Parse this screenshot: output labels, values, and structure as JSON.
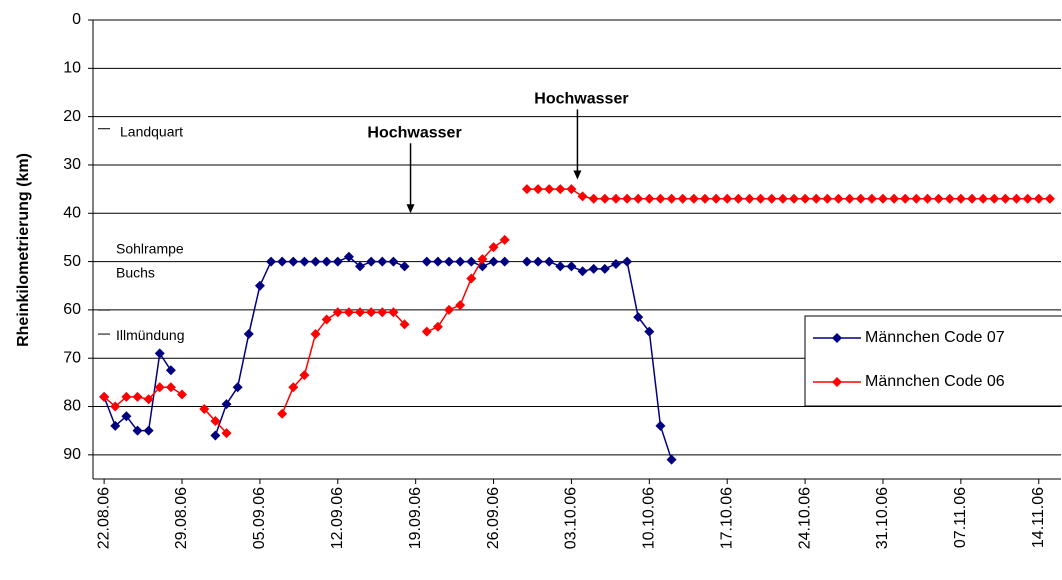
{
  "chart_data": {
    "type": "line",
    "y_label": "Rheinkilometrierung (km)",
    "ylim": [
      0,
      95
    ],
    "yticks": [
      0,
      10,
      20,
      30,
      40,
      50,
      60,
      70,
      80,
      90
    ],
    "y_inverted": true,
    "grid": true,
    "xlim": [
      "21.08.06",
      "16.11.06"
    ],
    "xticks": [
      "22.08.06",
      "29.08.06",
      "05.09.06",
      "12.09.06",
      "19.09.06",
      "26.09.06",
      "03.10.06",
      "10.10.06",
      "17.10.06",
      "24.10.06",
      "31.10.06",
      "07.11.06",
      "14.11.06"
    ],
    "legend": "right",
    "annotations": [
      {
        "text": "Landquart",
        "y": 22.5
      },
      {
        "text": "Sohlrampe",
        "y": 50
      },
      {
        "text": "Buchs",
        "y": 50
      },
      {
        "text": "Illmündung",
        "y": 65
      },
      {
        "text": "Hochwasser",
        "x": "18.09.06",
        "y": 40
      },
      {
        "text": "Hochwasser",
        "x": "03.10.06",
        "y": 33
      }
    ],
    "series": [
      {
        "name": "Männchen Code 07",
        "color": "#000080",
        "x": [
          "22.08.06",
          "23.08.06",
          "24.08.06",
          "25.08.06",
          "26.08.06",
          "27.08.06",
          "28.08.06",
          "29.08.06",
          "01.09.06",
          "02.09.06",
          "03.09.06",
          "04.09.06",
          "05.09.06",
          "06.09.06",
          "07.09.06",
          "08.09.06",
          "09.09.06",
          "10.09.06",
          "11.09.06",
          "12.09.06",
          "13.09.06",
          "14.09.06",
          "15.09.06",
          "16.09.06",
          "17.09.06",
          "18.09.06",
          "19.09.06",
          "20.09.06",
          "21.09.06",
          "22.09.06",
          "23.09.06",
          "24.09.06",
          "25.09.06",
          "26.09.06",
          "27.09.06",
          "28.09.06",
          "29.09.06",
          "30.09.06",
          "01.10.06",
          "02.10.06",
          "03.10.06",
          "04.10.06",
          "05.10.06",
          "06.10.06",
          "07.10.06",
          "08.10.06",
          "09.10.06",
          "10.10.06",
          "11.10.06",
          "12.10.06"
        ],
        "values": [
          78,
          84,
          82,
          85,
          85,
          69,
          72.5,
          null,
          86,
          79.5,
          76,
          65,
          55,
          50,
          50,
          50,
          50,
          50,
          50,
          50,
          49,
          51,
          50,
          50,
          50,
          51,
          null,
          50,
          50,
          50,
          50,
          50,
          51,
          50,
          50,
          null,
          50,
          50,
          50,
          51,
          51,
          52,
          51.5,
          51.5,
          50.5,
          50,
          61.5,
          64.5,
          84,
          91
        ]
      },
      {
        "name": "Männchen Code 06",
        "color": "#ff0000",
        "x": [
          "22.08.06",
          "23.08.06",
          "24.08.06",
          "25.08.06",
          "26.08.06",
          "27.08.06",
          "28.08.06",
          "29.08.06",
          "30.08.06",
          "31.08.06",
          "01.09.06",
          "02.09.06",
          "03.09.06",
          "07.09.06",
          "08.09.06",
          "09.09.06",
          "10.09.06",
          "11.09.06",
          "12.09.06",
          "13.09.06",
          "14.09.06",
          "15.09.06",
          "16.09.06",
          "17.09.06",
          "18.09.06",
          "19.09.06",
          "20.09.06",
          "21.09.06",
          "22.09.06",
          "23.09.06",
          "24.09.06",
          "25.09.06",
          "26.09.06",
          "27.09.06",
          "28.09.06",
          "29.09.06",
          "30.09.06",
          "01.10.06",
          "02.10.06",
          "03.10.06",
          "04.10.06",
          "05.10.06",
          "06.10.06",
          "07.10.06",
          "08.10.06",
          "09.10.06",
          "10.10.06",
          "11.10.06",
          "12.10.06",
          "13.10.06",
          "14.10.06",
          "15.10.06",
          "16.10.06",
          "17.10.06",
          "18.10.06",
          "19.10.06",
          "20.10.06",
          "21.10.06",
          "22.10.06",
          "23.10.06",
          "24.10.06",
          "25.10.06",
          "26.10.06",
          "27.10.06",
          "28.10.06",
          "29.10.06",
          "30.10.06",
          "31.10.06",
          "01.11.06",
          "02.11.06",
          "03.11.06",
          "04.11.06",
          "05.11.06",
          "06.11.06",
          "07.11.06",
          "08.11.06",
          "09.11.06",
          "10.11.06",
          "11.11.06",
          "12.11.06",
          "13.11.06",
          "14.11.06",
          "15.11.06"
        ],
        "values": [
          78,
          80,
          78,
          78,
          78.5,
          76,
          76,
          77.5,
          null,
          80.5,
          83,
          85.5,
          null,
          81.5,
          76,
          73.5,
          65,
          62,
          60.5,
          60.5,
          60.5,
          60.5,
          60.5,
          60.5,
          63,
          null,
          64.5,
          63.5,
          60,
          59,
          53.5,
          49.5,
          47,
          45.5,
          null,
          35,
          35,
          35,
          35,
          35,
          36.5,
          37,
          37,
          37,
          37,
          37,
          37,
          37,
          37,
          37,
          37,
          37,
          37,
          37,
          37,
          37,
          37,
          37,
          37,
          37,
          37,
          37,
          37,
          37,
          37,
          37,
          37,
          37,
          37,
          37,
          37,
          37,
          37,
          37,
          37,
          37,
          37,
          37,
          37,
          37,
          37,
          37,
          37
        ]
      }
    ]
  }
}
